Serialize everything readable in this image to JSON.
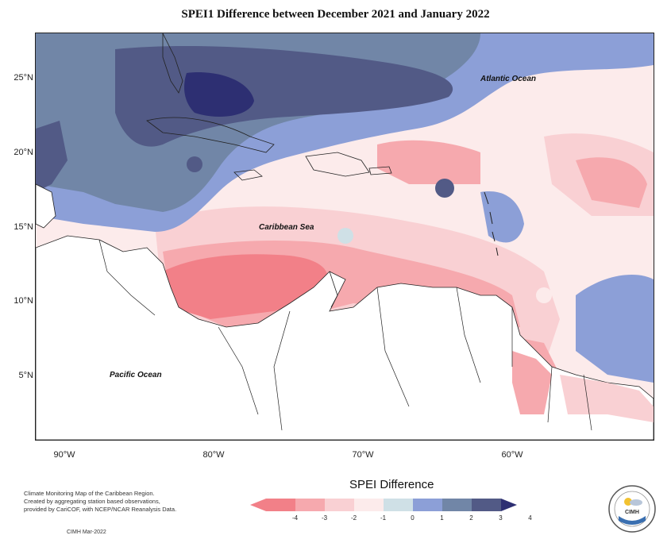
{
  "title": "SPEI1 Difference between December 2021 and January 2022",
  "map": {
    "lat_labels": [
      "25°N",
      "20°N",
      "15°N",
      "10°N",
      "5°N"
    ],
    "lon_labels": [
      "90°W",
      "80°W",
      "70°W",
      "60°W"
    ],
    "ocean_labels": {
      "atlantic": "Atlantic Ocean",
      "caribbean": "Caribbean Sea",
      "pacific": "Pacific Ocean"
    }
  },
  "legend": {
    "title": "SPEI Difference",
    "ticks": [
      "-4",
      "-3",
      "-2",
      "-1",
      "0",
      "1",
      "2",
      "3",
      "4"
    ],
    "colors": [
      "#f28088",
      "#f6a9ae",
      "#f9d0d3",
      "#fcebeb",
      "#cfe0e6",
      "#8c9fd7",
      "#7186a7",
      "#525a86",
      "#2d2f72"
    ]
  },
  "credits": {
    "line1": "Climate Monitoring Map of the Caribbean Region.",
    "line2": "Created by aggregating station based observations,",
    "line3": "provided by CariCOF, with NCEP/NCAR Reanalysis Data.",
    "date": "CIMH Mar-2022"
  },
  "logo": {
    "text": "CIMH"
  }
}
